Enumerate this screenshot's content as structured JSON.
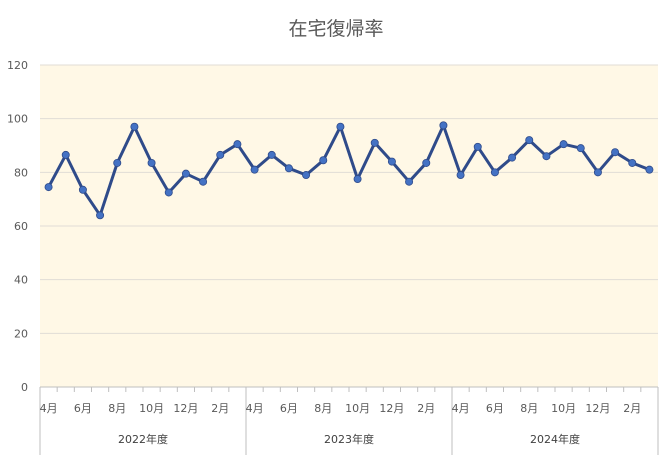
{
  "chart_data": {
    "type": "line",
    "title": "在宅復帰率",
    "xlabel": "",
    "ylabel": "",
    "ylim": [
      0,
      120
    ],
    "yticks": [
      0,
      20,
      40,
      60,
      80,
      100,
      120
    ],
    "grid": true,
    "legend": "none",
    "colors": {
      "plot_background": "#FFF8E6",
      "gridline": "#E0DDD6",
      "line": "#2F4B8A",
      "marker": "#4472C4"
    },
    "month_tick_labels": [
      "4月",
      "6月",
      "8月",
      "10月",
      "12月",
      "2月"
    ],
    "years": [
      "2022年度",
      "2023年度",
      "2024年度"
    ],
    "x": [
      "2022-04",
      "2022-05",
      "2022-06",
      "2022-07",
      "2022-08",
      "2022-09",
      "2022-10",
      "2022-11",
      "2022-12",
      "2023-01",
      "2023-02",
      "2023-03",
      "2023-04",
      "2023-05",
      "2023-06",
      "2023-07",
      "2023-08",
      "2023-09",
      "2023-10",
      "2023-11",
      "2023-12",
      "2024-01",
      "2024-02",
      "2024-03",
      "2024-04",
      "2024-05",
      "2024-06",
      "2024-07",
      "2024-08",
      "2024-09",
      "2024-10",
      "2024-11",
      "2024-12",
      "2025-01",
      "2025-02",
      "2025-03"
    ],
    "values": [
      74.5,
      86.5,
      73.5,
      64,
      83.5,
      97,
      83.5,
      72.5,
      79.5,
      76.5,
      86.5,
      90.5,
      81,
      86.5,
      81.5,
      79,
      84.5,
      97,
      77.5,
      91,
      84,
      76.5,
      83.5,
      97.5,
      79,
      89.5,
      80,
      85.5,
      92,
      86,
      90.5,
      89,
      80,
      87.5,
      83.5,
      81
    ]
  }
}
